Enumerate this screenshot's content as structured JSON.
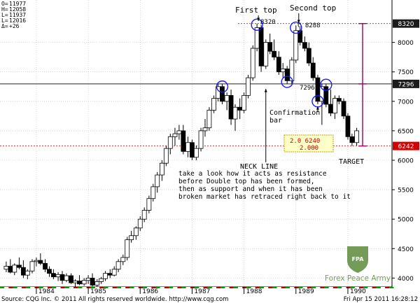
{
  "ohlc_readout": [
    {
      "label": "O=",
      "value": "11977"
    },
    {
      "label": "H=",
      "value": "12058"
    },
    {
      "label": "L=",
      "value": "11937"
    },
    {
      "label": "L=",
      "value": "12016"
    },
    {
      "label": "Δ=",
      "value": "+26"
    }
  ],
  "chart_data": {
    "type": "candlestick",
    "x_ticks": [
      "1984",
      "1985",
      "1986",
      "1987",
      "1988",
      "1989",
      "1990"
    ],
    "y_ticks": [
      4000,
      4500,
      5000,
      5500,
      6000,
      6500,
      7000,
      7500,
      8000
    ],
    "y_range": [
      3850,
      8720
    ],
    "price_tags": [
      {
        "value": 8320,
        "label": "8320",
        "style": "dark"
      },
      {
        "value": 7296,
        "label": "7296",
        "style": "dark"
      },
      {
        "value": 6242,
        "label": "6242",
        "style": "red"
      }
    ],
    "candles": [
      {
        "t": 1983.42,
        "o": 4150,
        "h": 4280,
        "l": 4100,
        "c": 4200
      },
      {
        "t": 1983.5,
        "o": 4200,
        "h": 4320,
        "l": 4080,
        "c": 4100
      },
      {
        "t": 1983.58,
        "o": 4100,
        "h": 4250,
        "l": 4050,
        "c": 4220
      },
      {
        "t": 1983.67,
        "o": 4220,
        "h": 4350,
        "l": 4150,
        "c": 4180
      },
      {
        "t": 1983.75,
        "o": 4180,
        "h": 4300,
        "l": 4000,
        "c": 4050
      },
      {
        "t": 1983.83,
        "o": 4050,
        "h": 4150,
        "l": 3980,
        "c": 4120
      },
      {
        "t": 1983.92,
        "o": 4120,
        "h": 4320,
        "l": 4080,
        "c": 4280
      },
      {
        "t": 1984.0,
        "o": 4280,
        "h": 4350,
        "l": 4200,
        "c": 4300
      },
      {
        "t": 1984.08,
        "o": 4300,
        "h": 4420,
        "l": 4220,
        "c": 4250
      },
      {
        "t": 1984.17,
        "o": 4250,
        "h": 4320,
        "l": 4100,
        "c": 4150
      },
      {
        "t": 1984.25,
        "o": 4150,
        "h": 4200,
        "l": 4020,
        "c": 4080
      },
      {
        "t": 1984.33,
        "o": 4080,
        "h": 4150,
        "l": 3980,
        "c": 4020
      },
      {
        "t": 1984.42,
        "o": 4020,
        "h": 4100,
        "l": 3950,
        "c": 4060
      },
      {
        "t": 1984.5,
        "o": 4060,
        "h": 4120,
        "l": 3900,
        "c": 3960
      },
      {
        "t": 1984.58,
        "o": 3960,
        "h": 4080,
        "l": 3930,
        "c": 4040
      },
      {
        "t": 1984.67,
        "o": 4040,
        "h": 4080,
        "l": 3900,
        "c": 3920
      },
      {
        "t": 1984.75,
        "o": 3920,
        "h": 3980,
        "l": 3850,
        "c": 3950
      },
      {
        "t": 1984.83,
        "o": 3950,
        "h": 4050,
        "l": 3880,
        "c": 3900
      },
      {
        "t": 1984.92,
        "o": 3900,
        "h": 4000,
        "l": 3870,
        "c": 3960
      },
      {
        "t": 1985.0,
        "o": 3960,
        "h": 4050,
        "l": 3900,
        "c": 4000
      },
      {
        "t": 1985.08,
        "o": 4000,
        "h": 4080,
        "l": 3860,
        "c": 3880
      },
      {
        "t": 1985.17,
        "o": 3880,
        "h": 3980,
        "l": 3850,
        "c": 3940
      },
      {
        "t": 1985.25,
        "o": 3940,
        "h": 4020,
        "l": 3900,
        "c": 3990
      },
      {
        "t": 1985.33,
        "o": 3990,
        "h": 4120,
        "l": 3950,
        "c": 4080
      },
      {
        "t": 1985.42,
        "o": 4080,
        "h": 4150,
        "l": 4000,
        "c": 4050
      },
      {
        "t": 1985.5,
        "o": 4050,
        "h": 4200,
        "l": 4030,
        "c": 4150
      },
      {
        "t": 1985.58,
        "o": 4150,
        "h": 4320,
        "l": 4100,
        "c": 4280
      },
      {
        "t": 1985.67,
        "o": 4280,
        "h": 4400,
        "l": 4220,
        "c": 4350
      },
      {
        "t": 1985.75,
        "o": 4350,
        "h": 4700,
        "l": 4300,
        "c": 4650
      },
      {
        "t": 1985.83,
        "o": 4650,
        "h": 4800,
        "l": 4600,
        "c": 4720
      },
      {
        "t": 1985.92,
        "o": 4720,
        "h": 4880,
        "l": 4650,
        "c": 4850
      },
      {
        "t": 1986.0,
        "o": 4850,
        "h": 5050,
        "l": 4800,
        "c": 5000
      },
      {
        "t": 1986.08,
        "o": 5000,
        "h": 5200,
        "l": 4950,
        "c": 5150
      },
      {
        "t": 1986.17,
        "o": 5150,
        "h": 5400,
        "l": 5100,
        "c": 5350
      },
      {
        "t": 1986.25,
        "o": 5350,
        "h": 5600,
        "l": 5300,
        "c": 5550
      },
      {
        "t": 1986.33,
        "o": 5550,
        "h": 5800,
        "l": 5450,
        "c": 5750
      },
      {
        "t": 1986.42,
        "o": 5750,
        "h": 6000,
        "l": 5650,
        "c": 5950
      },
      {
        "t": 1986.5,
        "o": 5950,
        "h": 6250,
        "l": 5900,
        "c": 6200
      },
      {
        "t": 1986.58,
        "o": 6200,
        "h": 6450,
        "l": 6100,
        "c": 6400
      },
      {
        "t": 1986.67,
        "o": 6400,
        "h": 6550,
        "l": 6250,
        "c": 6450
      },
      {
        "t": 1986.75,
        "o": 6450,
        "h": 6600,
        "l": 6350,
        "c": 6500
      },
      {
        "t": 1986.83,
        "o": 6500,
        "h": 6600,
        "l": 6100,
        "c": 6150
      },
      {
        "t": 1986.92,
        "o": 6150,
        "h": 6400,
        "l": 6050,
        "c": 6300
      },
      {
        "t": 1987.0,
        "o": 6300,
        "h": 6350,
        "l": 6000,
        "c": 6050
      },
      {
        "t": 1987.08,
        "o": 6050,
        "h": 6250,
        "l": 6000,
        "c": 6200
      },
      {
        "t": 1987.17,
        "o": 6200,
        "h": 6550,
        "l": 6150,
        "c": 6500
      },
      {
        "t": 1987.25,
        "o": 6500,
        "h": 6700,
        "l": 6400,
        "c": 6550
      },
      {
        "t": 1987.33,
        "o": 6550,
        "h": 6900,
        "l": 6500,
        "c": 6850
      },
      {
        "t": 1987.42,
        "o": 6850,
        "h": 7100,
        "l": 6800,
        "c": 7050
      },
      {
        "t": 1987.5,
        "o": 7050,
        "h": 7300,
        "l": 7000,
        "c": 7250
      },
      {
        "t": 1987.58,
        "o": 7250,
        "h": 7296,
        "l": 6950,
        "c": 7000
      },
      {
        "t": 1987.67,
        "o": 7000,
        "h": 7150,
        "l": 6850,
        "c": 7100
      },
      {
        "t": 1987.75,
        "o": 7100,
        "h": 7200,
        "l": 6600,
        "c": 6700
      },
      {
        "t": 1987.83,
        "o": 6700,
        "h": 6950,
        "l": 6500,
        "c": 6900
      },
      {
        "t": 1987.92,
        "o": 6900,
        "h": 7050,
        "l": 6700,
        "c": 6850
      },
      {
        "t": 1988.0,
        "o": 6850,
        "h": 7150,
        "l": 6800,
        "c": 7100
      },
      {
        "t": 1988.08,
        "o": 7100,
        "h": 7450,
        "l": 7050,
        "c": 7400
      },
      {
        "t": 1988.17,
        "o": 7400,
        "h": 7950,
        "l": 7350,
        "c": 7900
      },
      {
        "t": 1988.25,
        "o": 7900,
        "h": 8320,
        "l": 7850,
        "c": 8250
      },
      {
        "t": 1988.33,
        "o": 8250,
        "h": 8300,
        "l": 7500,
        "c": 7600
      },
      {
        "t": 1988.42,
        "o": 7600,
        "h": 8050,
        "l": 7550,
        "c": 8000
      },
      {
        "t": 1988.5,
        "o": 8000,
        "h": 8150,
        "l": 7800,
        "c": 7850
      },
      {
        "t": 1988.58,
        "o": 7850,
        "h": 8050,
        "l": 7700,
        "c": 7750
      },
      {
        "t": 1988.67,
        "o": 7750,
        "h": 7850,
        "l": 7450,
        "c": 7500
      },
      {
        "t": 1988.75,
        "o": 7500,
        "h": 7650,
        "l": 7400,
        "c": 7550
      },
      {
        "t": 1988.83,
        "o": 7550,
        "h": 7600,
        "l": 7296,
        "c": 7350
      },
      {
        "t": 1988.92,
        "o": 7350,
        "h": 7750,
        "l": 7300,
        "c": 7700
      },
      {
        "t": 1989.0,
        "o": 7700,
        "h": 8288,
        "l": 7650,
        "c": 8200
      },
      {
        "t": 1989.08,
        "o": 8200,
        "h": 8250,
        "l": 7950,
        "c": 8000
      },
      {
        "t": 1989.17,
        "o": 8000,
        "h": 8100,
        "l": 7850,
        "c": 7900
      },
      {
        "t": 1989.25,
        "o": 7900,
        "h": 8000,
        "l": 7600,
        "c": 7650
      },
      {
        "t": 1989.33,
        "o": 7650,
        "h": 7750,
        "l": 7350,
        "c": 7400
      },
      {
        "t": 1989.42,
        "o": 7400,
        "h": 7450,
        "l": 6950,
        "c": 7000
      },
      {
        "t": 1989.5,
        "o": 7000,
        "h": 7300,
        "l": 6600,
        "c": 7250
      },
      {
        "t": 1989.58,
        "o": 7250,
        "h": 7300,
        "l": 6900,
        "c": 6950
      },
      {
        "t": 1989.67,
        "o": 6950,
        "h": 7200,
        "l": 6750,
        "c": 6800
      },
      {
        "t": 1989.75,
        "o": 6800,
        "h": 7100,
        "l": 6700,
        "c": 7050
      },
      {
        "t": 1989.83,
        "o": 7050,
        "h": 7100,
        "l": 6950,
        "c": 7000
      },
      {
        "t": 1989.92,
        "o": 7000,
        "h": 7050,
        "l": 6700,
        "c": 6750
      },
      {
        "t": 1990.0,
        "o": 6750,
        "h": 6800,
        "l": 6350,
        "c": 6400
      },
      {
        "t": 1990.08,
        "o": 6400,
        "h": 6450,
        "l": 6242,
        "c": 6300
      },
      {
        "t": 1990.17,
        "o": 6300,
        "h": 6550,
        "l": 6250,
        "c": 6500
      }
    ]
  },
  "annotations": {
    "first_top": "First top",
    "second_top": "Second top",
    "peak1_label": "8320",
    "peak2_label": "C 8288",
    "neckline_low_label": "7296",
    "confirmation": [
      "Confirmation",
      "bar"
    ],
    "target": "TARGET",
    "fib_box": [
      "2.0 6240",
      "2.000"
    ],
    "neck_line_title": "NECK LINE",
    "neck_line_body": [
      "take a look how it acts as resistance",
      "before Double top has been formed,",
      "then as support and when it has been",
      "broken market has retraced right back to it"
    ]
  },
  "watermark": {
    "badge_text": "FPA",
    "brand": "Forex Peace Army"
  },
  "footer": {
    "source": "Source: CQG Inc. © 2011 All rights reserved worldwide. http://www.cqg.com",
    "timestamp": "Fri Apr 15 2011 16:28:12"
  }
}
